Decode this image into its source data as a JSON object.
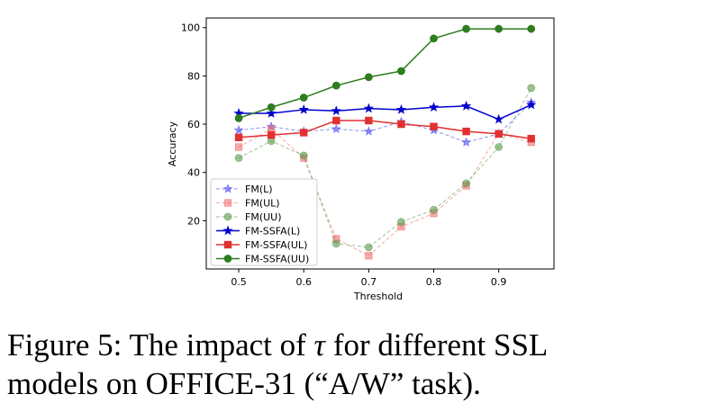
{
  "chart_data": {
    "type": "line",
    "xlabel": "Threshold",
    "ylabel": "Accuracy",
    "xlim": [
      0.45,
      0.985
    ],
    "ylim": [
      0,
      104
    ],
    "xticks": [
      0.5,
      0.6,
      0.7,
      0.8,
      0.9
    ],
    "xtick_labels": [
      "0.5",
      "0.6",
      "0.7",
      "0.8",
      "0.9"
    ],
    "yticks": [
      20,
      40,
      60,
      80,
      100
    ],
    "ytick_labels": [
      "20",
      "40",
      "60",
      "80",
      "100"
    ],
    "x": [
      0.5,
      0.55,
      0.6,
      0.65,
      0.7,
      0.75,
      0.8,
      0.85,
      0.9,
      0.95
    ],
    "legend_position": "lower-left",
    "grid": false,
    "series": [
      {
        "name": "FM(L)",
        "color": "#4a4af0",
        "marker": "star",
        "dashed": true,
        "alpha": 0.6,
        "values": [
          57.5,
          59,
          57,
          58,
          57,
          61,
          57.5,
          52.5,
          56,
          69
        ]
      },
      {
        "name": "FM(UL)",
        "color": "#f07070",
        "marker": "square",
        "dashed": true,
        "alpha": 0.6,
        "values": [
          50.5,
          58,
          46,
          12.5,
          5.5,
          17.5,
          23,
          34.5,
          56,
          52.5
        ]
      },
      {
        "name": "FM(UU)",
        "color": "#5a9a4a",
        "marker": "circle",
        "dashed": true,
        "alpha": 0.6,
        "values": [
          46,
          53,
          47,
          10.5,
          9,
          19.5,
          24.5,
          35.5,
          50.5,
          75
        ]
      },
      {
        "name": "FM-SSFA(L)",
        "color": "#0000cc",
        "marker": "star",
        "dashed": false,
        "alpha": 1,
        "values": [
          64.5,
          64.5,
          66,
          65.5,
          66.5,
          66,
          67,
          67.5,
          62,
          68
        ]
      },
      {
        "name": "FM-SSFA(UL)",
        "color": "#e03030",
        "marker": "square",
        "dashed": false,
        "alpha": 1,
        "values": [
          54.5,
          55.5,
          56.5,
          61.5,
          61.5,
          60,
          59,
          57,
          56,
          54
        ]
      },
      {
        "name": "FM-SSFA(UU)",
        "color": "#2e7d1f",
        "marker": "circle",
        "dashed": false,
        "alpha": 1,
        "values": [
          62.5,
          67,
          71,
          76,
          79.5,
          82,
          95.5,
          99.5,
          99.5,
          99.5
        ]
      }
    ]
  },
  "caption": {
    "line1_prefix": "Figure 5:  The impact of ",
    "tau": "τ",
    "line1_suffix": " for different SSL",
    "line2": "models on OFFICE-31 (“A/W” task)."
  }
}
